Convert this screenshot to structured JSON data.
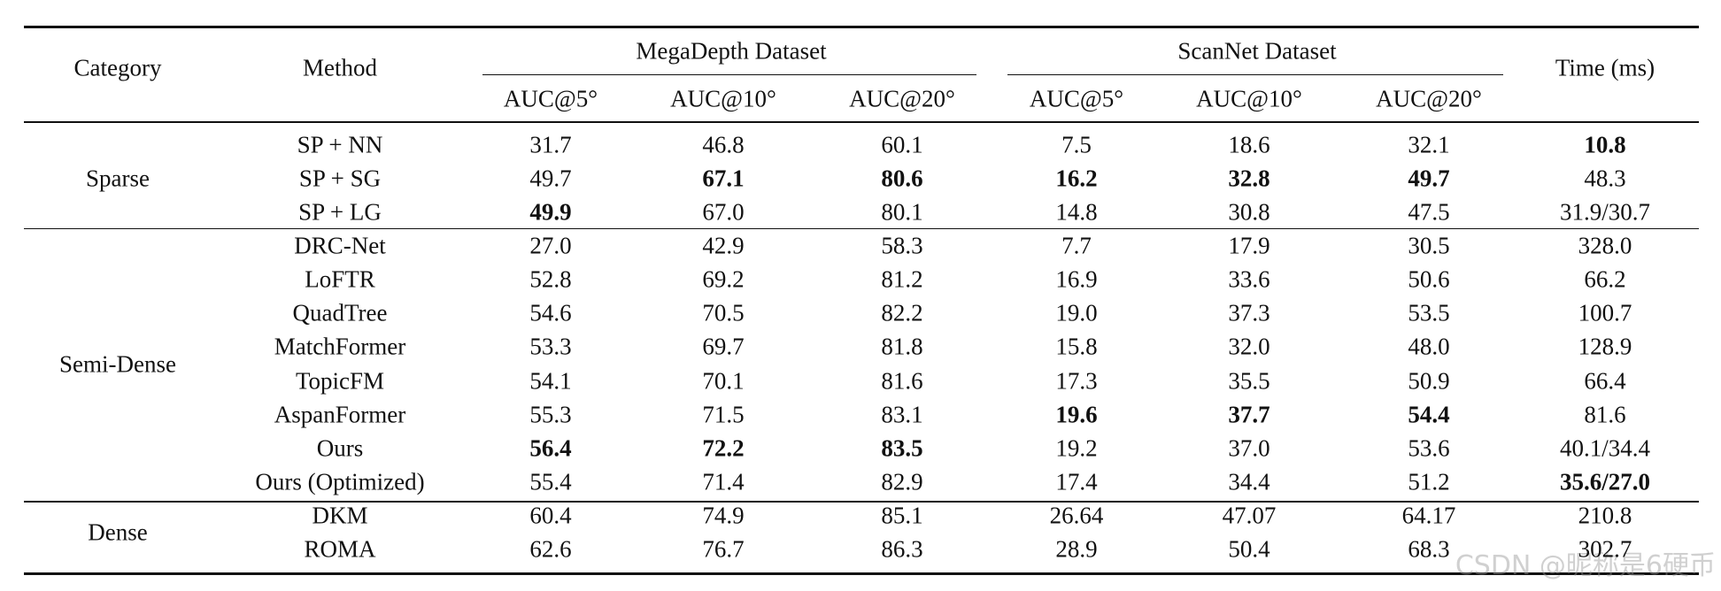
{
  "table": {
    "header": {
      "category": "Category",
      "method": "Method",
      "time": "Time (ms)",
      "groups": [
        {
          "name": "MegaDepth Dataset",
          "columns": [
            "AUC@5°",
            "AUC@10°",
            "AUC@20°"
          ]
        },
        {
          "name": "ScanNet Dataset",
          "columns": [
            "AUC@5°",
            "AUC@10°",
            "AUC@20°"
          ]
        }
      ]
    },
    "sections": [
      {
        "category": "Sparse",
        "rows": [
          {
            "method": "SP + NN",
            "cells": [
              "31.7",
              "46.8",
              "60.1",
              "7.5",
              "18.6",
              "32.1",
              {
                "text": "10.8",
                "bold": true
              }
            ]
          },
          {
            "method": "SP + SG",
            "cells": [
              "49.7",
              {
                "text": "67.1",
                "bold": true
              },
              {
                "text": "80.6",
                "bold": true
              },
              {
                "text": "16.2",
                "bold": true
              },
              {
                "text": "32.8",
                "bold": true
              },
              {
                "text": "49.7",
                "bold": true
              },
              "48.3"
            ]
          },
          {
            "method": "SP + LG",
            "cells": [
              {
                "text": "49.9",
                "bold": true
              },
              "67.0",
              "80.1",
              "14.8",
              "30.8",
              "47.5",
              "31.9/30.7"
            ]
          }
        ]
      },
      {
        "category": "Semi-Dense",
        "rows": [
          {
            "method": "DRC-Net",
            "cells": [
              "27.0",
              "42.9",
              "58.3",
              "7.7",
              "17.9",
              "30.5",
              "328.0"
            ]
          },
          {
            "method": "LoFTR",
            "cells": [
              "52.8",
              "69.2",
              "81.2",
              "16.9",
              "33.6",
              "50.6",
              "66.2"
            ]
          },
          {
            "method": "QuadTree",
            "cells": [
              "54.6",
              "70.5",
              "82.2",
              "19.0",
              "37.3",
              "53.5",
              "100.7"
            ]
          },
          {
            "method": "MatchFormer",
            "cells": [
              "53.3",
              "69.7",
              "81.8",
              "15.8",
              "32.0",
              "48.0",
              "128.9"
            ]
          },
          {
            "method": "TopicFM",
            "cells": [
              "54.1",
              "70.1",
              "81.6",
              "17.3",
              "35.5",
              "50.9",
              "66.4"
            ]
          },
          {
            "method": "AspanFormer",
            "cells": [
              "55.3",
              "71.5",
              "83.1",
              {
                "text": "19.6",
                "bold": true
              },
              {
                "text": "37.7",
                "bold": true
              },
              {
                "text": "54.4",
                "bold": true
              },
              "81.6"
            ]
          },
          {
            "method": "Ours",
            "cells": [
              {
                "text": "56.4",
                "bold": true
              },
              {
                "text": "72.2",
                "bold": true
              },
              {
                "text": "83.5",
                "bold": true
              },
              "19.2",
              "37.0",
              "53.6",
              "40.1/34.4"
            ]
          },
          {
            "method": "Ours (Optimized)",
            "cells": [
              "55.4",
              "71.4",
              "82.9",
              "17.4",
              "34.4",
              "51.2",
              {
                "text": "35.6/27.0",
                "bold": true
              }
            ]
          }
        ]
      },
      {
        "category": "Dense",
        "rows": [
          {
            "method": "DKM",
            "cells": [
              "60.4",
              "74.9",
              "85.1",
              "26.64",
              "47.07",
              "64.17",
              "210.8"
            ]
          },
          {
            "method": "ROMA",
            "cells": [
              "62.6",
              "76.7",
              "86.3",
              "28.9",
              "50.4",
              "68.3",
              "302.7"
            ]
          }
        ]
      }
    ]
  },
  "watermark": "CSDN @昵称是6硬币"
}
